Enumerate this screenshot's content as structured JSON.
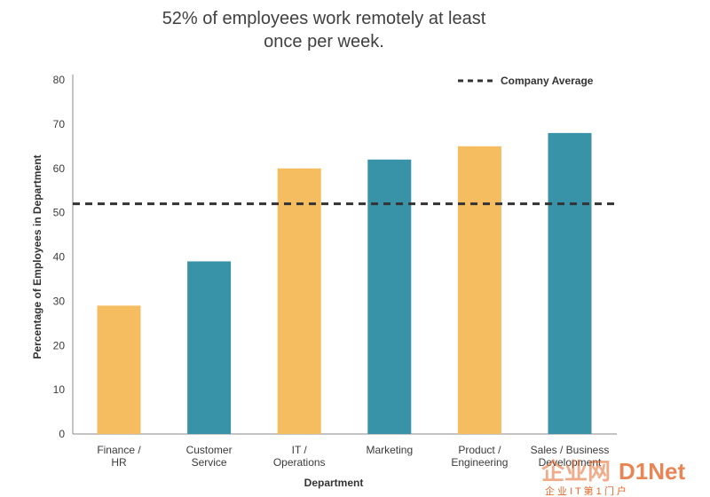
{
  "chart_data": {
    "type": "bar",
    "title": "52% of employees work remotely at least once per week.",
    "title_lines": [
      "52% of employees work remotely at least",
      "once per week."
    ],
    "xlabel": "Department",
    "ylabel": "Percentage of Employees in Department",
    "categories": [
      [
        "Finance /",
        "HR"
      ],
      [
        "Customer",
        "Service"
      ],
      [
        "IT /",
        "Operations"
      ],
      [
        "Marketing"
      ],
      [
        "Product /",
        "Engineering"
      ],
      [
        "Sales / Business",
        "Development"
      ]
    ],
    "values": [
      29,
      39,
      60,
      62,
      65,
      68
    ],
    "bar_colors": [
      "#f6bd60",
      "#3993a8",
      "#f6bd60",
      "#3993a8",
      "#f6bd60",
      "#3993a8"
    ],
    "ylim": [
      0,
      80
    ],
    "yticks": [
      0,
      10,
      20,
      30,
      40,
      50,
      60,
      70,
      80
    ],
    "reference_line": {
      "label": "Company Average",
      "value": 52,
      "style": "dashed",
      "color": "#333333"
    },
    "legend_position": "top-right",
    "grid": false
  },
  "watermark": {
    "brand_cn": "企业网",
    "brand_en": "D1Net",
    "tagline": "企 业 I T 第 1 门 户"
  }
}
